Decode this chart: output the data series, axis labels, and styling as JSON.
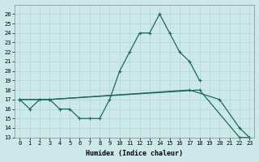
{
  "xlabel": "Humidex (Indice chaleur)",
  "bg_color": "#cce8e8",
  "line_color": "#1a6b5a",
  "grid_color": "#aed4d4",
  "ylim": [
    13,
    27
  ],
  "xlim": [
    -0.5,
    23.5
  ],
  "yticks": [
    13,
    14,
    15,
    16,
    17,
    18,
    19,
    20,
    21,
    22,
    23,
    24,
    25,
    26
  ],
  "xticks": [
    0,
    1,
    2,
    3,
    4,
    5,
    6,
    7,
    8,
    9,
    10,
    11,
    12,
    13,
    14,
    15,
    16,
    17,
    18,
    19,
    20,
    21,
    22,
    23
  ],
  "line1_x": [
    0,
    1,
    2,
    3,
    4,
    5,
    6,
    7,
    8,
    9,
    10,
    11,
    12,
    13,
    14,
    15,
    16,
    17,
    18
  ],
  "line1_y": [
    17,
    16,
    17,
    17,
    16,
    16,
    15,
    15,
    15,
    17,
    20,
    22,
    24,
    24,
    26,
    24,
    22,
    21,
    19
  ],
  "line2_x": [
    0,
    3,
    17,
    20,
    22,
    23
  ],
  "line2_y": [
    17,
    17,
    18,
    17,
    14,
    13
  ],
  "line3_x": [
    0,
    3,
    18,
    22,
    23
  ],
  "line3_y": [
    17,
    17,
    18,
    13,
    13
  ],
  "xlabel_fontsize": 6,
  "tick_fontsize": 5,
  "linewidth": 0.9,
  "markersize": 3
}
